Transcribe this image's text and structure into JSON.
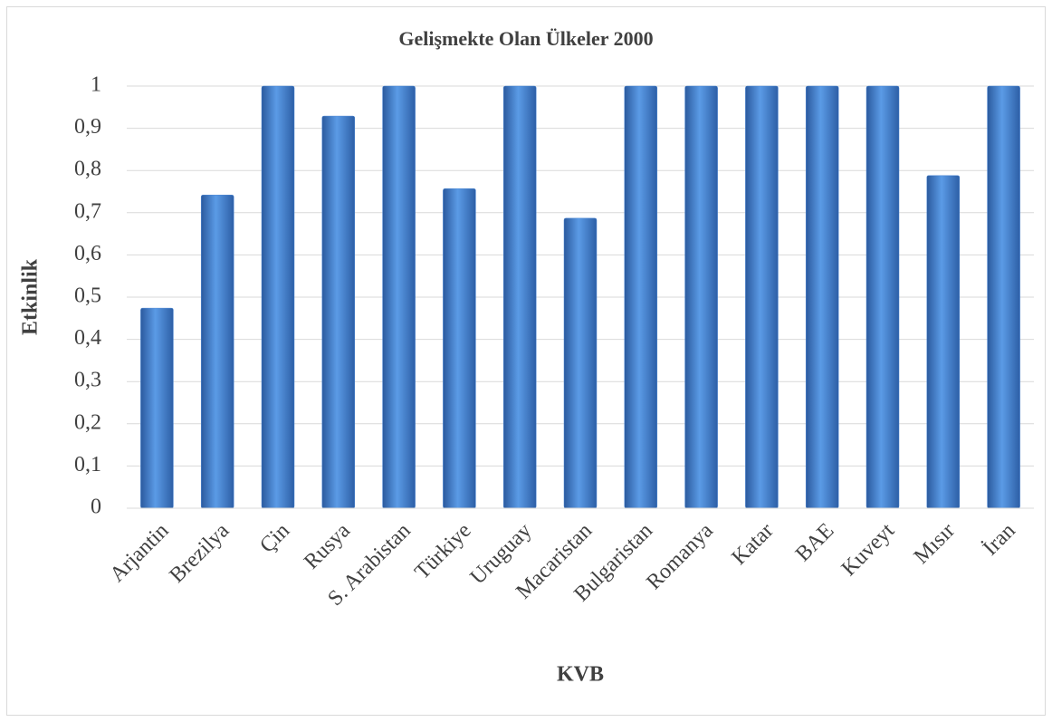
{
  "chart_data": {
    "type": "bar",
    "title": "Gelişmekte Olan Ülkeler 2000",
    "x_label": "KVB",
    "y_label": "Etkinlik",
    "categories": [
      "Arjantin",
      "Brezilya",
      "Çin",
      "Rusya",
      "S. Arabistan",
      "Türkiye",
      "Uruguay",
      "Macaristan",
      "Bulgaristan",
      "Romanya",
      "Katar",
      "BAE",
      "Kuveyt",
      "Mısır",
      "İran"
    ],
    "values": [
      0.474,
      0.742,
      1,
      0.929,
      1,
      0.757,
      1,
      0.687,
      1,
      1,
      1,
      1,
      1,
      0.788,
      1
    ],
    "color": "#4a86d4",
    "ylim": [
      0,
      1
    ],
    "yticks": [
      0,
      {
        "value": 0.1,
        "label": "0,1"
      },
      {
        "value": 0.2,
        "label": "0,2"
      },
      {
        "value": 0.3,
        "label": "0,3"
      },
      {
        "value": 0.4,
        "label": "0,4"
      },
      {
        "value": 0.5,
        "label": "0,5"
      },
      {
        "value": 0.6,
        "label": "0,6"
      },
      {
        "value": 0.7,
        "label": "0,7"
      },
      {
        "value": 0.8,
        "label": "0,8"
      },
      {
        "value": 0.9,
        "label": "0,9"
      },
      1
    ],
    "grid": true
  }
}
